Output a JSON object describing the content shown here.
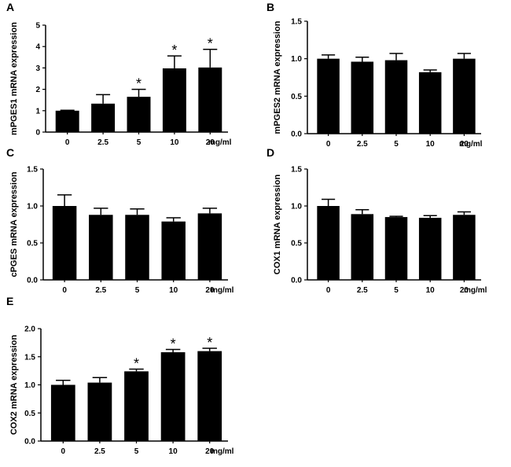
{
  "unit": "mg/ml",
  "chart_data": [
    {
      "type": "bar",
      "panel": "A",
      "ylabel": "mPGES1 mRNA expression",
      "categories": [
        "0",
        "2.5",
        "5",
        "10",
        "20"
      ],
      "values": [
        1.0,
        1.33,
        1.65,
        2.98,
        3.02
      ],
      "errors": [
        0.02,
        0.42,
        0.35,
        0.58,
        0.85
      ],
      "significance": [
        "",
        "",
        "*",
        "*",
        "*"
      ],
      "ylim": [
        0,
        5
      ],
      "yticks": [
        0,
        1,
        2,
        3,
        4,
        5
      ],
      "ytick_labels": [
        "0",
        "1",
        "2",
        "3",
        "4",
        "5"
      ]
    },
    {
      "type": "bar",
      "panel": "B",
      "ylabel": "mPGES2 mRNA expression",
      "categories": [
        "0",
        "2.5",
        "5",
        "10",
        "20"
      ],
      "values": [
        1.0,
        0.96,
        0.98,
        0.82,
        1.0
      ],
      "errors": [
        0.05,
        0.06,
        0.09,
        0.03,
        0.07
      ],
      "significance": [
        "",
        "",
        "",
        "",
        ""
      ],
      "ylim": [
        0,
        1.5
      ],
      "yticks": [
        0,
        0.5,
        1.0,
        1.5
      ],
      "ytick_labels": [
        "0.0",
        "0.5",
        "1.0",
        "1.5"
      ]
    },
    {
      "type": "bar",
      "panel": "C",
      "ylabel": "cPGES mRNA expression",
      "categories": [
        "0",
        "2.5",
        "5",
        "10",
        "20"
      ],
      "values": [
        1.0,
        0.88,
        0.88,
        0.79,
        0.9
      ],
      "errors": [
        0.15,
        0.09,
        0.08,
        0.05,
        0.07
      ],
      "significance": [
        "",
        "",
        "",
        "",
        ""
      ],
      "ylim": [
        0,
        1.5
      ],
      "yticks": [
        0,
        0.5,
        1.0,
        1.5
      ],
      "ytick_labels": [
        "0.0",
        "0.5",
        "1.0",
        "1.5"
      ]
    },
    {
      "type": "bar",
      "panel": "D",
      "ylabel": "COX1 mRNA expression",
      "categories": [
        "0",
        "2.5",
        "5",
        "10",
        "20"
      ],
      "values": [
        1.0,
        0.89,
        0.85,
        0.84,
        0.88
      ],
      "errors": [
        0.09,
        0.06,
        0.01,
        0.03,
        0.04
      ],
      "significance": [
        "",
        "",
        "",
        "",
        ""
      ],
      "ylim": [
        0,
        1.5
      ],
      "yticks": [
        0,
        0.5,
        1.0,
        1.5
      ],
      "ytick_labels": [
        "0.0",
        "0.5",
        "1.0",
        "1.5"
      ]
    },
    {
      "type": "bar",
      "panel": "E",
      "ylabel": "COX2 mRNA expression",
      "categories": [
        "0",
        "2.5",
        "5",
        "10",
        "20"
      ],
      "values": [
        1.0,
        1.04,
        1.24,
        1.58,
        1.6
      ],
      "errors": [
        0.08,
        0.09,
        0.04,
        0.05,
        0.05
      ],
      "significance": [
        "",
        "",
        "*",
        "*",
        "*"
      ],
      "ylim": [
        0,
        2.0
      ],
      "yticks": [
        0,
        0.5,
        1.0,
        1.5,
        2.0
      ],
      "ytick_labels": [
        "0.0",
        "0.5",
        "1.0",
        "1.5",
        "2.0"
      ]
    }
  ]
}
